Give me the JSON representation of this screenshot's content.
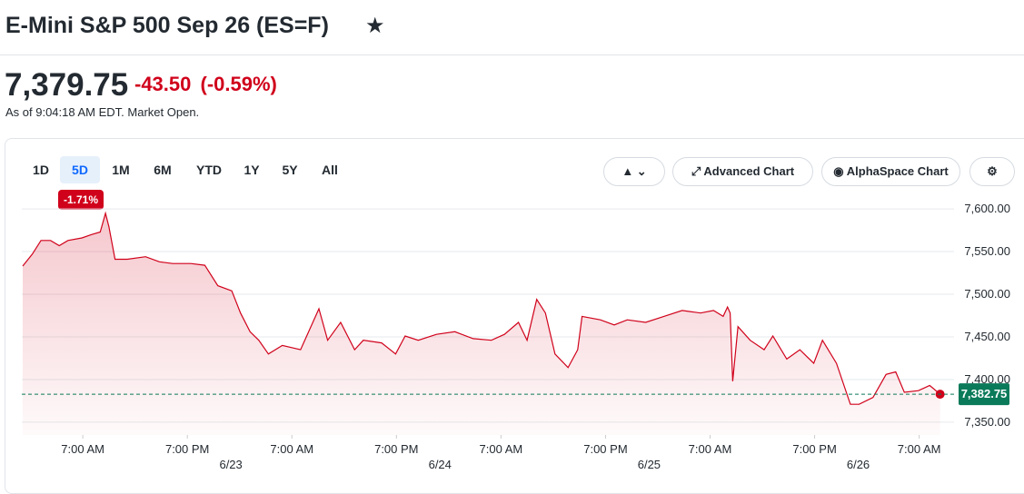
{
  "header": {
    "title": "E-Mini S&P 500 Sep 26 (ES=F)"
  },
  "quote": {
    "price": "7,379.75",
    "change": "-43.50",
    "change_percent": "(-0.59%)",
    "as_of": "As of 9:04:18 AM EDT. Market Open."
  },
  "ranges": [
    "1D",
    "5D",
    "1M",
    "6M",
    "YTD",
    "1Y",
    "5Y",
    "All"
  ],
  "selected_range_change": "-1.71%",
  "toolbar": {
    "advanced": "Advanced Chart",
    "alphaspace": "AlphaSpace Chart"
  },
  "chart_data": {
    "type": "line",
    "color": "#d0021b",
    "grid": true,
    "x": [
      0.1,
      1.2,
      2.2,
      3.3,
      4.3,
      5.3,
      6.9,
      8.0,
      9.0,
      9.6,
      10.0,
      10.7,
      12.1,
      14.2,
      15.8,
      17.3,
      19.4,
      21.0,
      22.5,
      24.1,
      25.1,
      26.2,
      27.2,
      28.3,
      29.9,
      32.0,
      34.1,
      35.1,
      36.6,
      38.2,
      39.2,
      41.3,
      42.9,
      44.0,
      45.5,
      47.6,
      49.7,
      51.8,
      53.9,
      55.4,
      57.0,
      58.0,
      59.1,
      60.1,
      61.2,
      62.7,
      63.8,
      64.3,
      66.4,
      68.0,
      69.5,
      71.6,
      73.7,
      75.8,
      77.9,
      79.4,
      80.5,
      81.0,
      81.3,
      81.6,
      82.2,
      83.6,
      85.2,
      86.2,
      87.8,
      89.3,
      90.9,
      91.9,
      93.5,
      95.1,
      96.1,
      97.7,
      99.2,
      100.3,
      101.3,
      102.9,
      104.2,
      105.4
    ],
    "values": [
      7533,
      7547,
      7563,
      7563,
      7557,
      7563,
      7566,
      7570,
      7573,
      7595,
      7579,
      7541,
      7541,
      7544,
      7538,
      7536,
      7536,
      7534,
      7510,
      7504,
      7478,
      7456,
      7446,
      7430,
      7440,
      7435,
      7483,
      7446,
      7467,
      7435,
      7446,
      7443,
      7430,
      7451,
      7446,
      7453,
      7456,
      7448,
      7446,
      7453,
      7467,
      7446,
      7494,
      7478,
      7430,
      7414,
      7435,
      7474,
      7470,
      7464,
      7470,
      7467,
      7474,
      7481,
      7478,
      7481,
      7474,
      7485,
      7478,
      7398,
      7462,
      7446,
      7435,
      7451,
      7424,
      7435,
      7419,
      7446,
      7419,
      7371,
      7371,
      7379,
      7406,
      7409,
      7385,
      7387,
      7393,
      7382.75
    ],
    "xlim": [
      0,
      107
    ],
    "xticks": [
      {
        "value": 7,
        "label": "7:00 AM"
      },
      {
        "value": 19,
        "label": "7:00 PM"
      },
      {
        "value": 31,
        "label": "7:00 AM"
      },
      {
        "value": 43,
        "label": "7:00 PM"
      },
      {
        "value": 55,
        "label": "7:00 AM"
      },
      {
        "value": 67,
        "label": "7:00 PM"
      },
      {
        "value": 79,
        "label": "7:00 AM"
      },
      {
        "value": 91,
        "label": "7:00 PM"
      },
      {
        "value": 103,
        "label": "7:00 AM"
      }
    ],
    "date_ticks": [
      {
        "value": 24,
        "label": "6/23"
      },
      {
        "value": 48,
        "label": "6/24"
      },
      {
        "value": 72,
        "label": "6/25"
      },
      {
        "value": 96,
        "label": "6/26"
      }
    ],
    "ylim": [
      7335,
      7615
    ],
    "yticks": [
      {
        "value": 7350,
        "label": "7,350.00"
      },
      {
        "value": 7400,
        "label": "7,400.00"
      },
      {
        "value": 7450,
        "label": "7,450.00"
      },
      {
        "value": 7500,
        "label": "7,500.00"
      },
      {
        "value": 7550,
        "label": "7,550.00"
      },
      {
        "value": 7600,
        "label": "7,600.00"
      }
    ],
    "reference_line": {
      "value": 7382.75,
      "label": "7,382.75",
      "color": "#0b7a5a"
    }
  }
}
